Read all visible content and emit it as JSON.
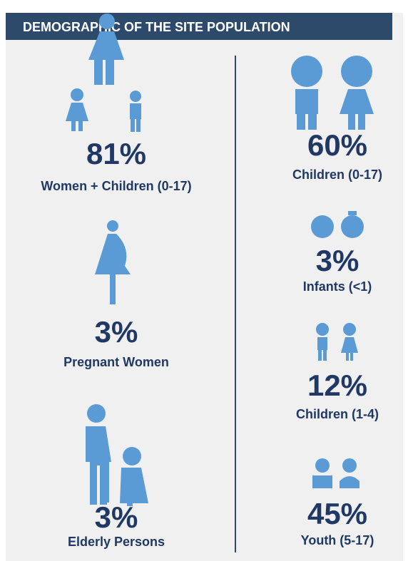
{
  "header": {
    "title": "DEMOGRAPHIC OF THE SITE POPULATION"
  },
  "left": [
    {
      "value": "81%",
      "label": "Women + Children (0-17)"
    },
    {
      "value": "3%",
      "label": "Pregnant Women"
    },
    {
      "value": "3%",
      "label": "Elderly Persons"
    }
  ],
  "right": [
    {
      "value": "60%",
      "label": "Children (0-17)"
    },
    {
      "value": "3%",
      "label": "Infants (<1)"
    },
    {
      "value": "12%",
      "label": "Children (1-4)"
    },
    {
      "value": "45%",
      "label": "Youth (5-17)"
    }
  ]
}
